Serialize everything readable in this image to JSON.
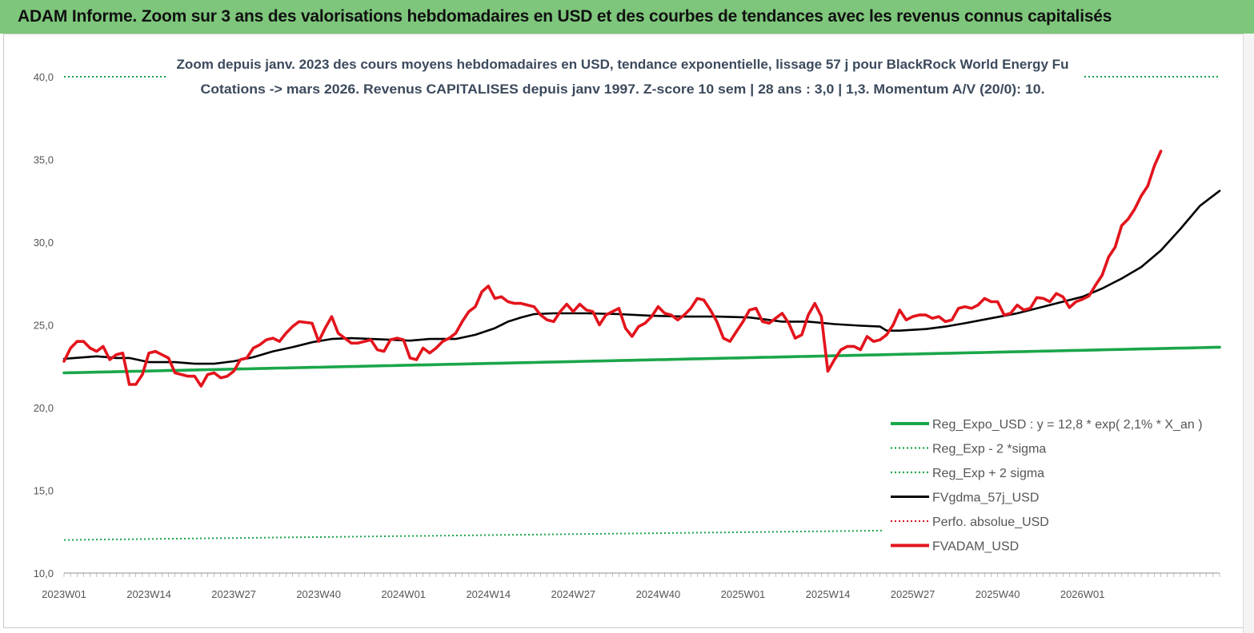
{
  "banner": {
    "title": "ADAM Informe. Zoom sur 3 ans des valorisations hebdomadaires en USD et des courbes de tendances avec les revenus connus capitalisés"
  },
  "colors": {
    "banner_bg": "#7dc67b",
    "reg_expo": "#1aa64a",
    "sigma_band": "#1aa64a",
    "fvgdma": "#000000",
    "perfo": "#e0202a",
    "fvadam": "#e3141c",
    "title_text": "#3c4a5c"
  },
  "chart_data": {
    "type": "line",
    "title_line1": "Zoom depuis janv. 2023 des cours moyens hebdomadaires en USD, tendance exponentielle, lissage 57 j pour BlackRock World  Energy Fu",
    "title_line2": "Cotations -> mars 2026. Revenus CAPITALISES depuis janv 1997. Z-score 10 sem | 28 ans : 3,0 | 1,3. Momentum A/V (20/0): 10.",
    "xlabel": "",
    "ylabel": "",
    "ylim": [
      10,
      40
    ],
    "y_ticks": [
      "10,0",
      "15,0",
      "20,0",
      "25,0",
      "30,0",
      "35,0",
      "40,0"
    ],
    "x_tick_labels": [
      "2023W01",
      "2023W14",
      "2023W27",
      "2023W40",
      "2024W01",
      "2024W14",
      "2024W27",
      "2024W40",
      "2025W01",
      "2025W14",
      "2025W27",
      "2025W40",
      "2026W01"
    ],
    "x_range_weeks": [
      0,
      168
    ],
    "grid": false,
    "legend_position": "bottom-right",
    "series": [
      {
        "name": "Reg_Expo_USD : y = 12,8 * exp( 2,1% *  X_an )",
        "style": "solid-thick",
        "color": "#1aa64a",
        "start_value": 22.1,
        "end_value": 23.65
      },
      {
        "name": "Reg_Exp - 2 *sigma",
        "style": "dotted",
        "color": "#1aa64a",
        "start_value": 12.0,
        "end_value": 12.8
      },
      {
        "name": "Reg_Exp + 2 sigma",
        "style": "dotted",
        "color": "#1aa64a",
        "start_value": 40.0,
        "end_value": 40.0
      },
      {
        "name": "FVgdma_57j_USD",
        "style": "solid",
        "color": "#000000",
        "points": [
          [
            0,
            22.95
          ],
          [
            5,
            23.1
          ],
          [
            8,
            23.0
          ],
          [
            10,
            23.0
          ],
          [
            13,
            22.75
          ],
          [
            17,
            22.75
          ],
          [
            20,
            22.65
          ],
          [
            23,
            22.65
          ],
          [
            26,
            22.8
          ],
          [
            29,
            23.05
          ],
          [
            32,
            23.4
          ],
          [
            35,
            23.65
          ],
          [
            38,
            23.95
          ],
          [
            41,
            24.15
          ],
          [
            44,
            24.2
          ],
          [
            47,
            24.15
          ],
          [
            50,
            24.1
          ],
          [
            53,
            24.05
          ],
          [
            56,
            24.15
          ],
          [
            60,
            24.15
          ],
          [
            63,
            24.4
          ],
          [
            66,
            24.8
          ],
          [
            68,
            25.2
          ],
          [
            70,
            25.45
          ],
          [
            72,
            25.65
          ],
          [
            75,
            25.7
          ],
          [
            80,
            25.7
          ],
          [
            85,
            25.65
          ],
          [
            90,
            25.55
          ],
          [
            95,
            25.5
          ],
          [
            100,
            25.5
          ],
          [
            105,
            25.45
          ],
          [
            108,
            25.3
          ],
          [
            110,
            25.2
          ],
          [
            114,
            25.2
          ],
          [
            118,
            25.05
          ],
          [
            122,
            24.95
          ],
          [
            125,
            24.9
          ],
          [
            126,
            24.65
          ],
          [
            128,
            24.65
          ],
          [
            132,
            24.75
          ],
          [
            135,
            24.9
          ],
          [
            138,
            25.1
          ],
          [
            142,
            25.4
          ],
          [
            146,
            25.7
          ],
          [
            150,
            26.1
          ],
          [
            153,
            26.4
          ],
          [
            156,
            26.7
          ],
          [
            159,
            27.2
          ],
          [
            162,
            27.8
          ],
          [
            165,
            28.5
          ],
          [
            168,
            29.5
          ],
          [
            171,
            30.8
          ],
          [
            174,
            32.2
          ],
          [
            177,
            33.1
          ]
        ]
      },
      {
        "name": "Perfo. absolue_USD",
        "style": "dotted",
        "color": "#e0202a",
        "points": []
      },
      {
        "name": "FVADAM_USD",
        "style": "solid-thick",
        "color": "#e3141c",
        "points": [
          [
            0,
            22.8
          ],
          [
            1,
            23.6
          ],
          [
            2,
            24.0
          ],
          [
            3,
            24.0
          ],
          [
            4,
            23.6
          ],
          [
            5,
            23.4
          ],
          [
            6,
            23.7
          ],
          [
            7,
            22.9
          ],
          [
            8,
            23.2
          ],
          [
            9,
            23.3
          ],
          [
            10,
            21.4
          ],
          [
            11,
            21.4
          ],
          [
            12,
            22.0
          ],
          [
            13,
            23.3
          ],
          [
            14,
            23.4
          ],
          [
            15,
            23.2
          ],
          [
            16,
            23.0
          ],
          [
            17,
            22.1
          ],
          [
            18,
            22.0
          ],
          [
            19,
            21.9
          ],
          [
            20,
            21.9
          ],
          [
            21,
            21.3
          ],
          [
            22,
            22.0
          ],
          [
            23,
            22.1
          ],
          [
            24,
            21.8
          ],
          [
            25,
            21.9
          ],
          [
            26,
            22.2
          ],
          [
            27,
            22.9
          ],
          [
            28,
            23.0
          ],
          [
            29,
            23.6
          ],
          [
            30,
            23.8
          ],
          [
            31,
            24.1
          ],
          [
            32,
            24.2
          ],
          [
            33,
            24.0
          ],
          [
            34,
            24.5
          ],
          [
            35,
            24.9
          ],
          [
            36,
            25.2
          ],
          [
            37,
            25.15
          ],
          [
            38,
            25.1
          ],
          [
            39,
            24.0
          ],
          [
            40,
            24.8
          ],
          [
            41,
            25.5
          ],
          [
            42,
            24.5
          ],
          [
            43,
            24.2
          ],
          [
            44,
            23.9
          ],
          [
            45,
            23.9
          ],
          [
            46,
            24.0
          ],
          [
            47,
            24.1
          ],
          [
            48,
            23.5
          ],
          [
            49,
            23.4
          ],
          [
            50,
            24.1
          ],
          [
            51,
            24.2
          ],
          [
            52,
            24.1
          ],
          [
            53,
            23.0
          ],
          [
            54,
            22.9
          ],
          [
            55,
            23.6
          ],
          [
            56,
            23.3
          ],
          [
            57,
            23.6
          ],
          [
            58,
            24.0
          ],
          [
            59,
            24.2
          ],
          [
            60,
            24.5
          ],
          [
            61,
            25.2
          ],
          [
            62,
            25.8
          ],
          [
            63,
            26.1
          ],
          [
            64,
            27.0
          ],
          [
            65,
            27.35
          ],
          [
            66,
            26.6
          ],
          [
            67,
            26.7
          ],
          [
            68,
            26.4
          ],
          [
            69,
            26.3
          ],
          [
            70,
            26.3
          ],
          [
            71,
            26.2
          ],
          [
            72,
            26.1
          ],
          [
            73,
            25.6
          ],
          [
            74,
            25.3
          ],
          [
            75,
            25.2
          ],
          [
            76,
            25.8
          ],
          [
            77,
            26.25
          ],
          [
            78,
            25.8
          ],
          [
            79,
            26.25
          ],
          [
            80,
            25.9
          ],
          [
            81,
            25.8
          ],
          [
            82,
            25.0
          ],
          [
            83,
            25.6
          ],
          [
            84,
            25.8
          ],
          [
            85,
            26.0
          ],
          [
            86,
            24.8
          ],
          [
            87,
            24.3
          ],
          [
            88,
            24.9
          ],
          [
            89,
            25.1
          ],
          [
            90,
            25.5
          ],
          [
            91,
            26.1
          ],
          [
            92,
            25.7
          ],
          [
            93,
            25.6
          ],
          [
            94,
            25.3
          ],
          [
            95,
            25.6
          ],
          [
            96,
            26.0
          ],
          [
            97,
            26.6
          ],
          [
            98,
            26.5
          ],
          [
            99,
            25.9
          ],
          [
            100,
            25.2
          ],
          [
            101,
            24.2
          ],
          [
            102,
            24.0
          ],
          [
            103,
            24.6
          ],
          [
            104,
            25.2
          ],
          [
            105,
            25.9
          ],
          [
            106,
            26.0
          ],
          [
            107,
            25.2
          ],
          [
            108,
            25.1
          ],
          [
            109,
            25.4
          ],
          [
            110,
            25.7
          ],
          [
            111,
            25.1
          ],
          [
            112,
            24.2
          ],
          [
            113,
            24.4
          ],
          [
            114,
            25.6
          ],
          [
            115,
            26.3
          ],
          [
            116,
            25.5
          ],
          [
            117,
            22.2
          ],
          [
            118,
            22.9
          ],
          [
            119,
            23.5
          ],
          [
            120,
            23.7
          ],
          [
            121,
            23.7
          ],
          [
            122,
            23.5
          ],
          [
            123,
            24.3
          ],
          [
            124,
            24.0
          ],
          [
            125,
            24.1
          ],
          [
            126,
            24.4
          ],
          [
            127,
            25.0
          ],
          [
            128,
            25.9
          ],
          [
            129,
            25.3
          ],
          [
            130,
            25.5
          ],
          [
            131,
            25.6
          ],
          [
            132,
            25.6
          ],
          [
            133,
            25.4
          ],
          [
            134,
            25.5
          ],
          [
            135,
            25.2
          ],
          [
            136,
            25.3
          ],
          [
            137,
            26.0
          ],
          [
            138,
            26.1
          ],
          [
            139,
            26.0
          ],
          [
            140,
            26.2
          ],
          [
            141,
            26.6
          ],
          [
            142,
            26.4
          ],
          [
            143,
            26.4
          ],
          [
            144,
            25.6
          ],
          [
            145,
            25.7
          ],
          [
            146,
            26.2
          ],
          [
            147,
            25.9
          ],
          [
            148,
            26.0
          ],
          [
            149,
            26.65
          ],
          [
            150,
            26.6
          ],
          [
            151,
            26.4
          ],
          [
            152,
            26.9
          ],
          [
            153,
            26.7
          ],
          [
            154,
            26.05
          ],
          [
            155,
            26.4
          ],
          [
            156,
            26.55
          ],
          [
            157,
            26.75
          ],
          [
            158,
            27.4
          ],
          [
            159,
            28.0
          ],
          [
            160,
            29.1
          ],
          [
            161,
            29.7
          ],
          [
            162,
            31.0
          ],
          [
            163,
            31.4
          ],
          [
            164,
            32.0
          ],
          [
            165,
            32.8
          ],
          [
            166,
            33.4
          ],
          [
            167,
            34.6
          ],
          [
            168,
            35.5
          ]
        ]
      }
    ]
  }
}
